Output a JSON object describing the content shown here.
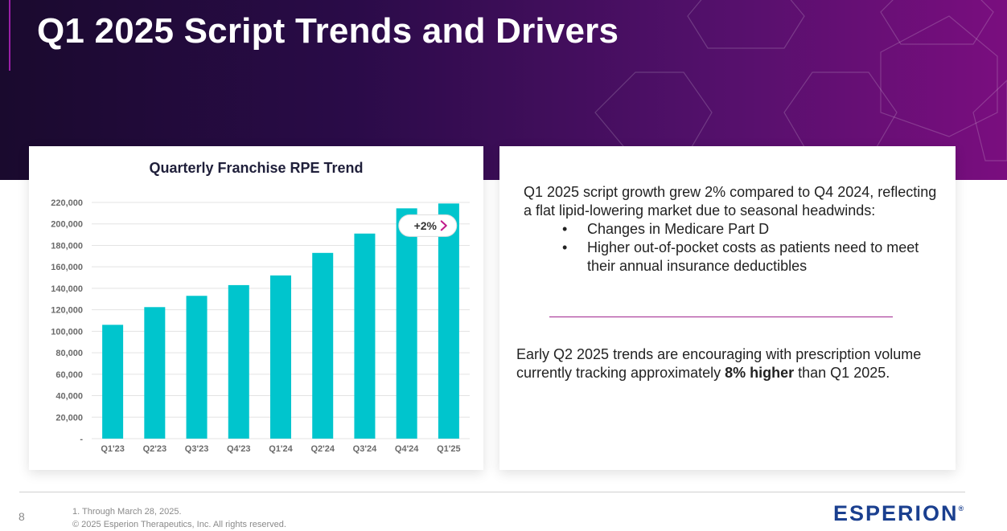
{
  "slide": {
    "title": "Q1 2025 Script Trends and Drivers",
    "page_number": "8"
  },
  "colors": {
    "banner_start": "#1a0a2e",
    "banner_end": "#7a0e7f",
    "bar": "#00c5cd",
    "accent": "#a0248e",
    "logo": "#1a3f8f"
  },
  "chart_data": {
    "type": "bar",
    "title": "Quarterly Franchise RPE Trend",
    "categories": [
      "Q1'23",
      "Q2'23",
      "Q3'23",
      "Q4'23",
      "Q1'24",
      "Q2'24",
      "Q3'24",
      "Q4'24",
      "Q1'25"
    ],
    "values": [
      106000,
      122500,
      133000,
      143000,
      152000,
      173000,
      191000,
      214500,
      219000
    ],
    "ylim": [
      0,
      220000
    ],
    "yticks": [
      "-",
      "20,000",
      "40,000",
      "60,000",
      "80,000",
      "100,000",
      "120,000",
      "140,000",
      "160,000",
      "180,000",
      "200,000",
      "220,000"
    ],
    "grid": true,
    "annotation": {
      "text": "+2%",
      "icon": "chevron-right-icon"
    }
  },
  "commentary": {
    "paragraph1": "Q1 2025 script growth grew 2% compared to Q4 2024, reflecting a flat lipid-lowering market due to seasonal headwinds:",
    "bullet_glyph": "•",
    "bullets": [
      "Changes in Medicare Part D",
      "Higher out-of-pocket costs as patients need to meet their annual insurance deductibles"
    ],
    "paragraph2_pre": "Early Q2 2025 trends are encouraging with prescription volume currently tracking approximately ",
    "paragraph2_bold": "8% higher",
    "paragraph2_post": " than Q1 2025."
  },
  "footer": {
    "footnote1": "1. Through March 28, 2025.",
    "copyright": "© 2025 Esperion Therapeutics, Inc. All rights reserved.",
    "logo_text": "ESPERION",
    "logo_mark": "®"
  }
}
